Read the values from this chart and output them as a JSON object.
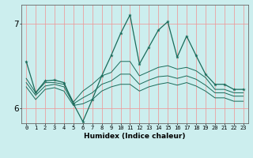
{
  "xlabel": "Humidex (Indice chaleur)",
  "bg_color": "#cceeee",
  "line_color": "#1a6b5a",
  "x": [
    0,
    1,
    2,
    3,
    4,
    5,
    6,
    7,
    8,
    9,
    10,
    11,
    12,
    13,
    14,
    15,
    16,
    17,
    18,
    19,
    20,
    21,
    22,
    23
  ],
  "series1": [
    6.55,
    6.18,
    6.32,
    6.33,
    6.3,
    6.05,
    5.84,
    6.1,
    6.38,
    6.62,
    6.88,
    7.1,
    6.52,
    6.72,
    6.92,
    7.02,
    6.6,
    6.85,
    6.62,
    6.4,
    6.28,
    6.28,
    6.22,
    6.22
  ],
  "series2": [
    6.35,
    6.18,
    6.3,
    6.3,
    6.28,
    6.07,
    6.2,
    6.28,
    6.38,
    6.42,
    6.55,
    6.55,
    6.38,
    6.43,
    6.48,
    6.5,
    6.46,
    6.48,
    6.44,
    6.36,
    6.22,
    6.22,
    6.18,
    6.18
  ],
  "series3": [
    6.3,
    6.15,
    6.26,
    6.28,
    6.25,
    6.05,
    6.12,
    6.18,
    6.28,
    6.32,
    6.4,
    6.4,
    6.28,
    6.33,
    6.37,
    6.38,
    6.35,
    6.38,
    6.34,
    6.27,
    6.18,
    6.18,
    6.14,
    6.14
  ],
  "series4": [
    6.25,
    6.1,
    6.22,
    6.24,
    6.2,
    6.03,
    6.05,
    6.1,
    6.2,
    6.25,
    6.28,
    6.28,
    6.2,
    6.25,
    6.28,
    6.3,
    6.27,
    6.3,
    6.26,
    6.2,
    6.12,
    6.12,
    6.08,
    6.08
  ],
  "ylim": [
    5.82,
    7.22
  ],
  "yticks": [
    6,
    7
  ],
  "grid_color": "#ee9999",
  "xlim": [
    -0.5,
    23.5
  ]
}
